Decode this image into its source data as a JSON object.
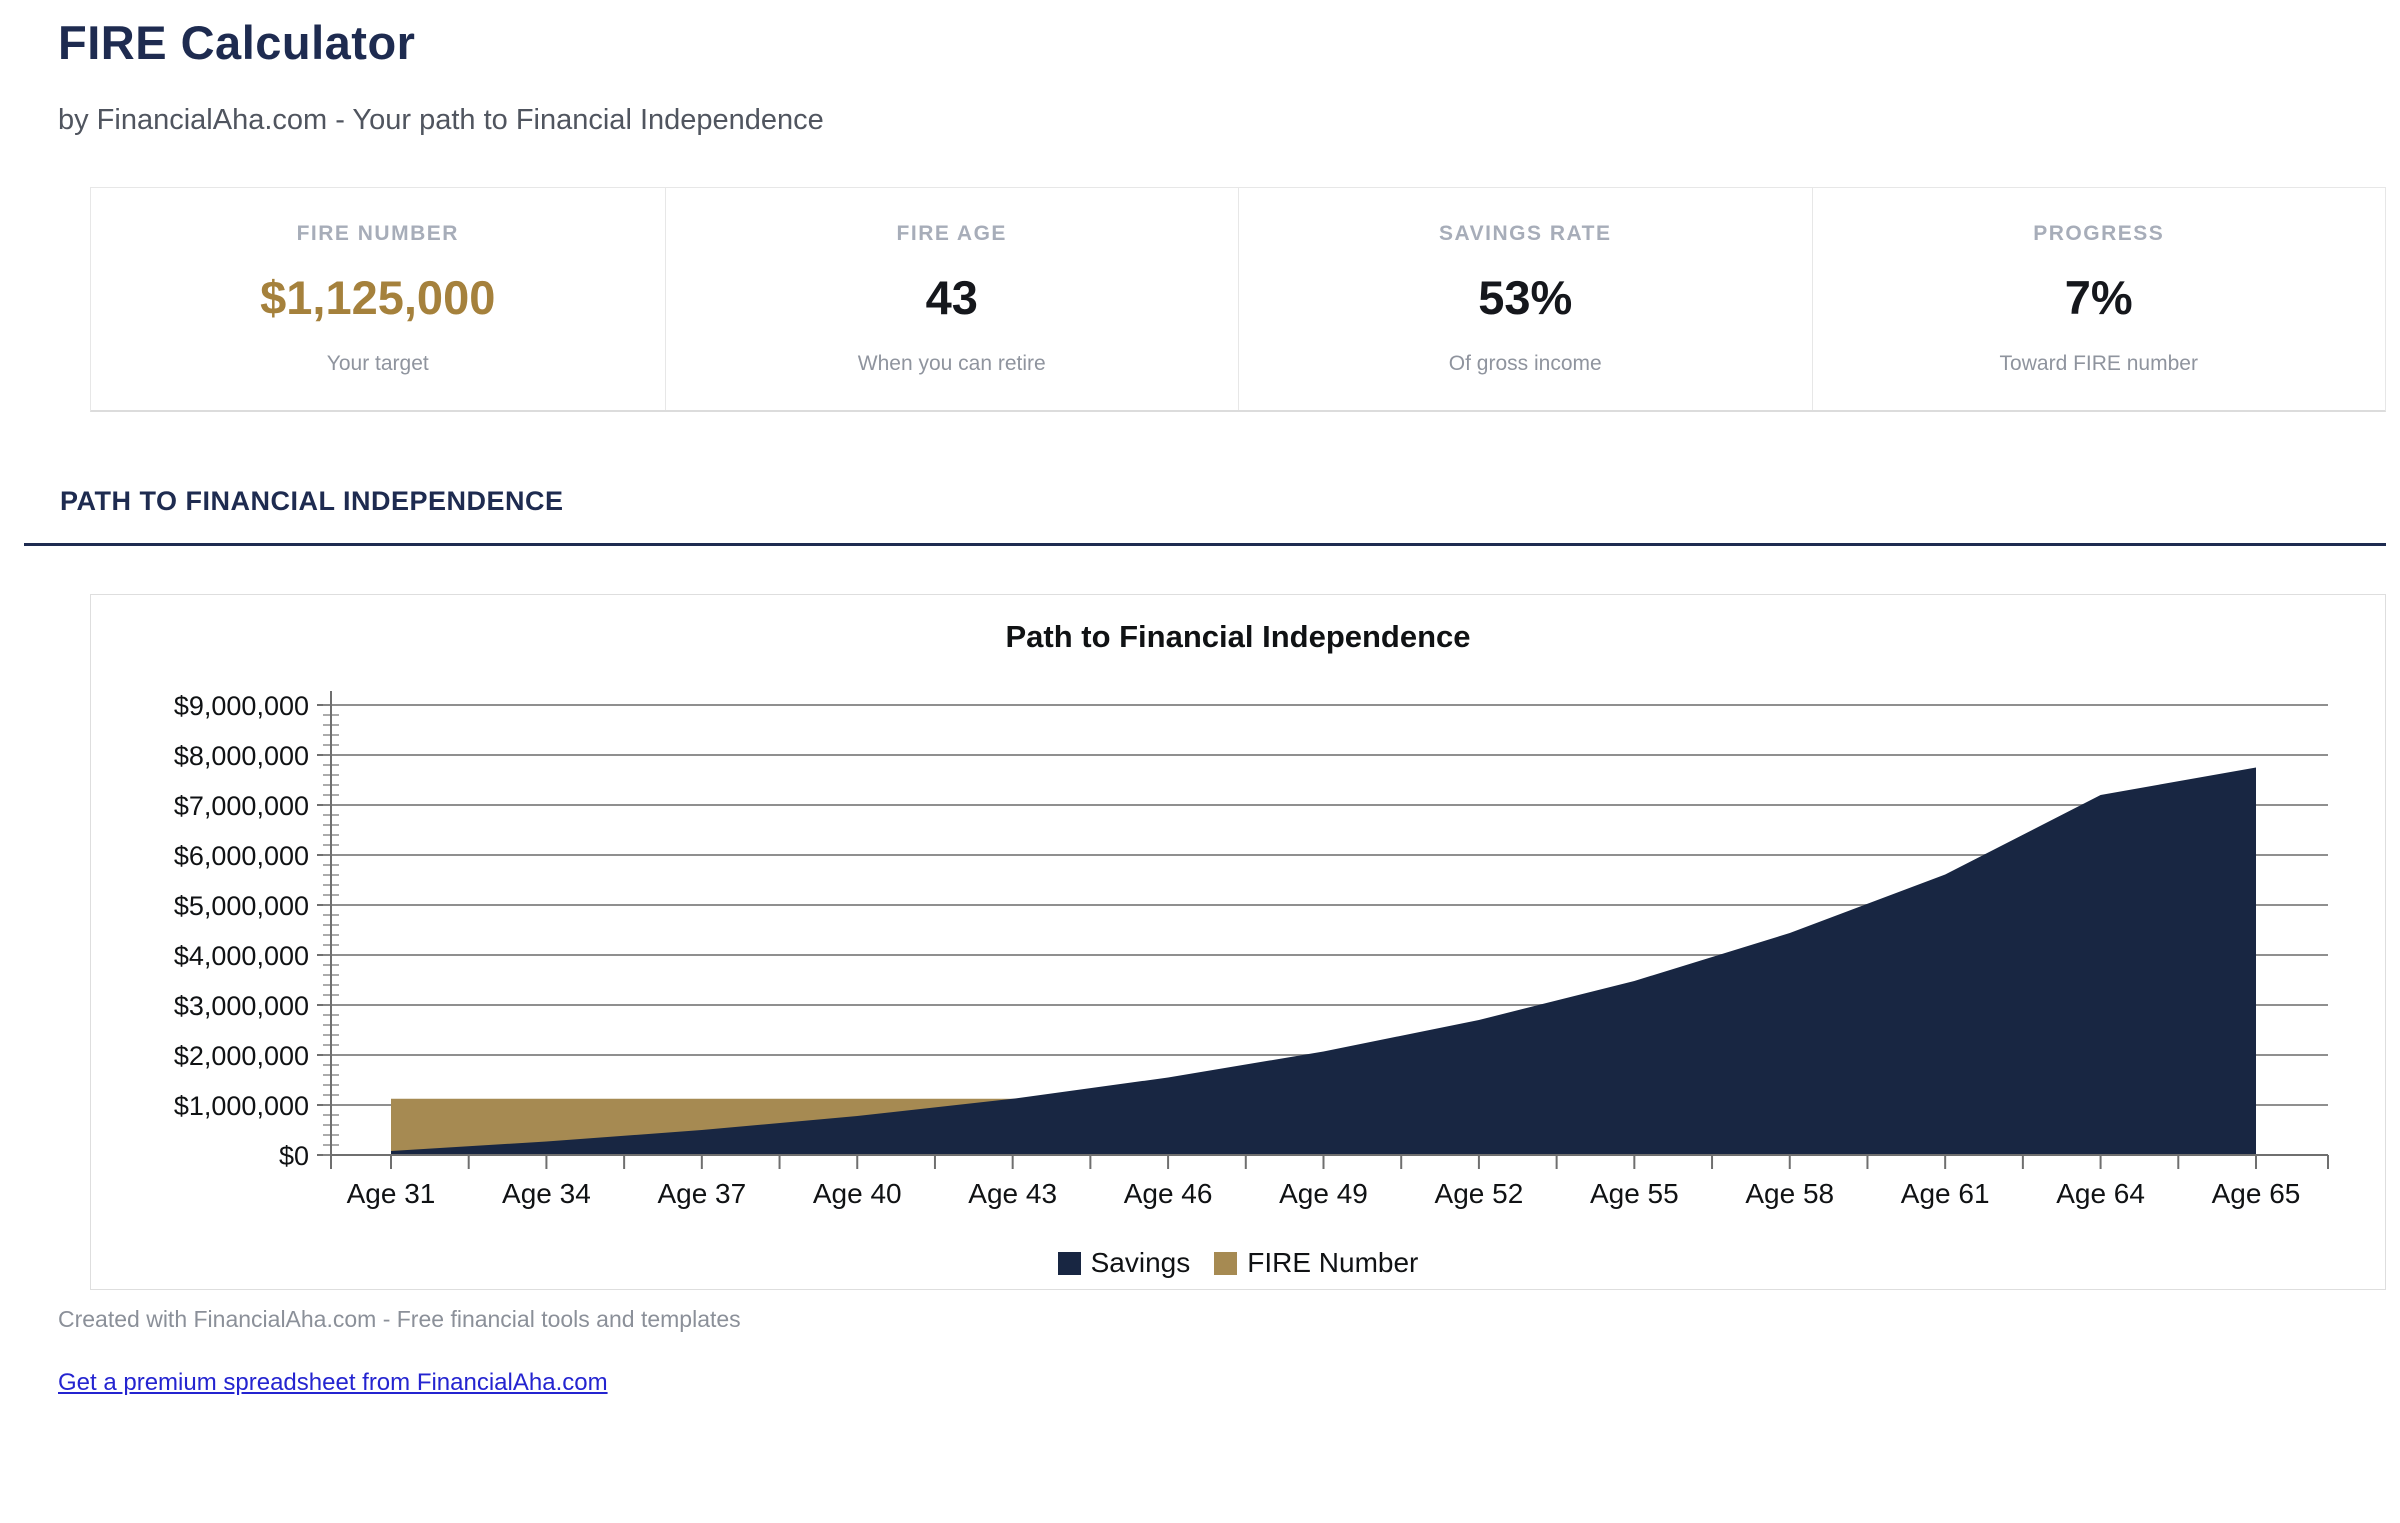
{
  "page": {
    "title": "FIRE Calculator",
    "subtitle": "by FinancialAha.com - Your path to Financial Independence"
  },
  "stats": [
    {
      "label": "FIRE NUMBER",
      "value": "$1,125,000",
      "caption": "Your target",
      "value_color": "#a5813c"
    },
    {
      "label": "FIRE AGE",
      "value": "43",
      "caption": "When you can retire",
      "value_color": "#15171c"
    },
    {
      "label": "SAVINGS RATE",
      "value": "53%",
      "caption": "Of gross income",
      "value_color": "#15171c"
    },
    {
      "label": "PROGRESS",
      "value": "7%",
      "caption": "Toward FIRE number",
      "value_color": "#15171c"
    }
  ],
  "section": {
    "heading": "PATH TO FINANCIAL INDEPENDENCE"
  },
  "chart_data": {
    "type": "area",
    "title": "Path to Financial Independence",
    "categories": [
      "Age 31",
      "Age 34",
      "Age 37",
      "Age 40",
      "Age 43",
      "Age 46",
      "Age 49",
      "Age 52",
      "Age 55",
      "Age 58",
      "Age 61",
      "Age 64",
      "Age 65"
    ],
    "series": [
      {
        "name": "Savings",
        "color": "#182642",
        "values": [
          80000,
          270000,
          500000,
          780000,
          1125000,
          1550000,
          2070000,
          2700000,
          3480000,
          4440000,
          5610000,
          7200000,
          7750000
        ]
      },
      {
        "name": "FIRE Number",
        "color": "#a68a52",
        "values": [
          1125000,
          1125000,
          1125000,
          1125000,
          1125000,
          1125000,
          1125000,
          1125000,
          1125000,
          1125000,
          1125000,
          1125000,
          1125000
        ]
      }
    ],
    "xlabel": "",
    "ylabel": "",
    "ylim": [
      0,
      9000000
    ],
    "y_major_step": 1000000,
    "y_minor_step": 200000,
    "y_tick_prefix": "$",
    "grid": "horizontal",
    "legend_position": "bottom"
  },
  "footer": {
    "credit": "Created with FinancialAha.com - Free financial tools and templates",
    "link": "Get a premium spreadsheet from FinancialAha.com"
  },
  "colors": {
    "heading_navy": "#1e2b50",
    "savings_navy": "#182642",
    "fire_gold": "#a68a52",
    "stat_gold": "#a5813c",
    "link_blue": "#2424d0",
    "grid_gray": "#8f8f8f",
    "axis_gray": "#6f6f6f"
  }
}
